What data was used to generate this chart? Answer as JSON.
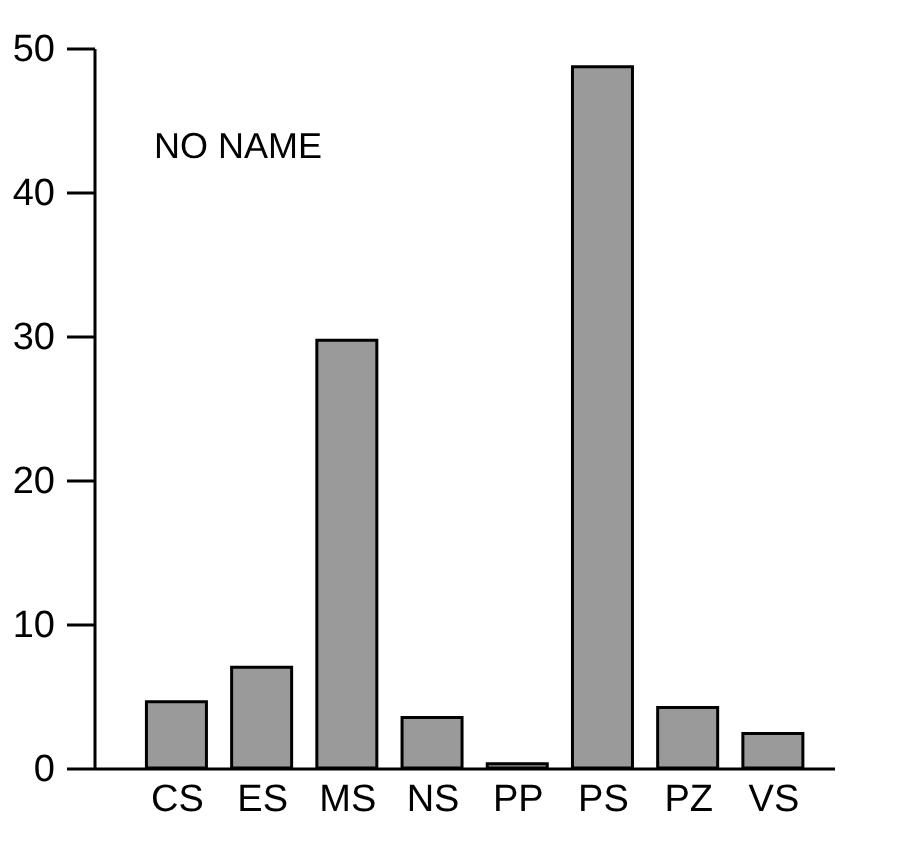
{
  "chart_data": {
    "type": "bar",
    "categories": [
      "CS",
      "ES",
      "MS",
      "NS",
      "PP",
      "PS",
      "PZ",
      "VS"
    ],
    "values": [
      4.6,
      7.0,
      29.7,
      3.5,
      0.3,
      48.7,
      4.2,
      2.4
    ],
    "color": "#9a9a9a",
    "ylim": [
      0,
      50
    ],
    "yticks": [
      0,
      10,
      20,
      30,
      40,
      50
    ],
    "grid": false,
    "annotations": [
      "NO NAME"
    ]
  }
}
